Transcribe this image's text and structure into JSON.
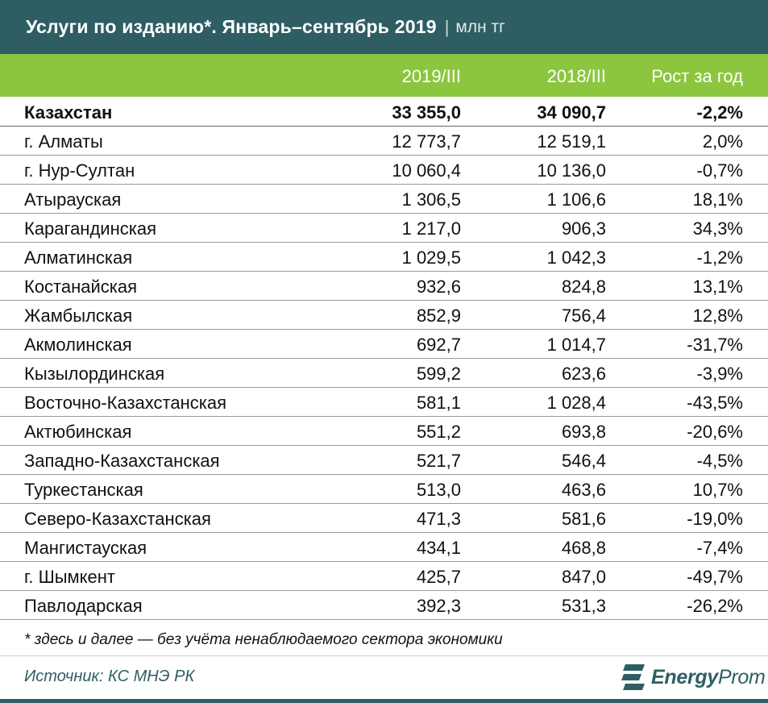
{
  "title": {
    "main": "Услуги по изданию*. Январь–сентябрь 2019",
    "separator": "|",
    "unit": "млн тг"
  },
  "columns": [
    "2019/III",
    "2018/III",
    "Рост за год"
  ],
  "rows": [
    {
      "name": "Казахстан",
      "v2019": "33 355,0",
      "v2018": "34 090,7",
      "growth": "-2,2%"
    },
    {
      "name": "г. Алматы",
      "v2019": "12 773,7",
      "v2018": "12 519,1",
      "growth": "2,0%"
    },
    {
      "name": "г. Нур-Султан",
      "v2019": "10 060,4",
      "v2018": "10 136,0",
      "growth": "-0,7%"
    },
    {
      "name": "Атырауская",
      "v2019": "1 306,5",
      "v2018": "1 106,6",
      "growth": "18,1%"
    },
    {
      "name": "Карагандинская",
      "v2019": "1 217,0",
      "v2018": "906,3",
      "growth": "34,3%"
    },
    {
      "name": "Алматинская",
      "v2019": "1 029,5",
      "v2018": "1 042,3",
      "growth": "-1,2%"
    },
    {
      "name": "Костанайская",
      "v2019": "932,6",
      "v2018": "824,8",
      "growth": "13,1%"
    },
    {
      "name": "Жамбылская",
      "v2019": "852,9",
      "v2018": "756,4",
      "growth": "12,8%"
    },
    {
      "name": "Акмолинская",
      "v2019": "692,7",
      "v2018": "1 014,7",
      "growth": "-31,7%"
    },
    {
      "name": "Кызылординская",
      "v2019": "599,2",
      "v2018": "623,6",
      "growth": "-3,9%"
    },
    {
      "name": "Восточно-Казахстанская",
      "v2019": "581,1",
      "v2018": "1 028,4",
      "growth": "-43,5%"
    },
    {
      "name": "Актюбинская",
      "v2019": "551,2",
      "v2018": "693,8",
      "growth": "-20,6%"
    },
    {
      "name": "Западно-Казахстанская",
      "v2019": "521,7",
      "v2018": "546,4",
      "growth": "-4,5%"
    },
    {
      "name": "Туркестанская",
      "v2019": "513,0",
      "v2018": "463,6",
      "growth": "10,7%"
    },
    {
      "name": "Северо-Казахстанская",
      "v2019": "471,3",
      "v2018": "581,6",
      "growth": "-19,0%"
    },
    {
      "name": "Мангистауская",
      "v2019": "434,1",
      "v2018": "468,8",
      "growth": "-7,4%"
    },
    {
      "name": "г. Шымкент",
      "v2019": "425,7",
      "v2018": "847,0",
      "growth": "-49,7%"
    },
    {
      "name": "Павлодарская",
      "v2019": "392,3",
      "v2018": "531,3",
      "growth": "-26,2%"
    }
  ],
  "footnote": "* здесь и далее — без учёта ненаблюдаемого сектора экономики",
  "source": "Источник: КС МНЭ РК",
  "logo": {
    "part1": "Energy",
    "part2": "Prom",
    "icon": "energyprom-logo-icon"
  },
  "colors": {
    "header": "#2e5e63",
    "subheader": "#8cc63f"
  }
}
